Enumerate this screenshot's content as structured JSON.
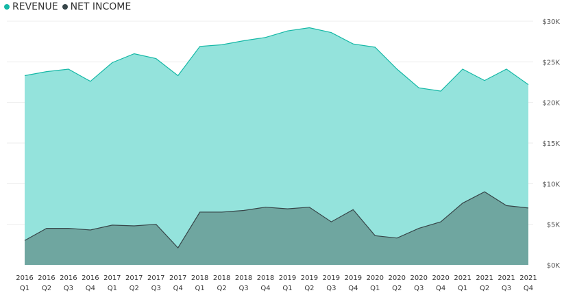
{
  "chart_data": {
    "type": "area",
    "title": "",
    "xlabel": "",
    "ylabel": "",
    "legend_position": "top-left",
    "grid": true,
    "ylim": [
      0,
      30000
    ],
    "yticks": [
      "$0K",
      "$5K",
      "$10K",
      "$15K",
      "$20K",
      "$25K",
      "$30K"
    ],
    "ytick_values": [
      0,
      5000,
      10000,
      15000,
      20000,
      25000,
      30000
    ],
    "categories": [
      [
        "2016",
        "Q1"
      ],
      [
        "2016",
        "Q2"
      ],
      [
        "2016",
        "Q3"
      ],
      [
        "2016",
        "Q4"
      ],
      [
        "2017",
        "Q1"
      ],
      [
        "2017",
        "Q2"
      ],
      [
        "2017",
        "Q3"
      ],
      [
        "2017",
        "Q4"
      ],
      [
        "2018",
        "Q1"
      ],
      [
        "2018",
        "Q2"
      ],
      [
        "2018",
        "Q3"
      ],
      [
        "2018",
        "Q4"
      ],
      [
        "2019",
        "Q1"
      ],
      [
        "2019",
        "Q2"
      ],
      [
        "2019",
        "Q3"
      ],
      [
        "2019",
        "Q4"
      ],
      [
        "2020",
        "Q1"
      ],
      [
        "2020",
        "Q2"
      ],
      [
        "2020",
        "Q3"
      ],
      [
        "2020",
        "Q4"
      ],
      [
        "2021",
        "Q1"
      ],
      [
        "2021",
        "Q2"
      ],
      [
        "2021",
        "Q3"
      ],
      [
        "2021",
        "Q4"
      ]
    ],
    "series": [
      {
        "name": "REVENUE",
        "color": "#15B8A6",
        "fill": "#94E3DC",
        "values": [
          23300,
          23800,
          24100,
          22600,
          24900,
          26000,
          25400,
          23300,
          26900,
          27100,
          27600,
          28000,
          28800,
          29200,
          28600,
          27200,
          26800,
          24100,
          21800,
          21400,
          24100,
          22700,
          24100,
          22200
        ]
      },
      {
        "name": "NET INCOME",
        "color": "#374649",
        "fill": "#6FA6A0",
        "values": [
          3000,
          4500,
          4500,
          4300,
          4900,
          4800,
          5000,
          2100,
          6500,
          6500,
          6700,
          7100,
          6900,
          7100,
          5300,
          6800,
          3600,
          3300,
          4500,
          5300,
          7600,
          9000,
          7300,
          7000
        ]
      }
    ]
  }
}
